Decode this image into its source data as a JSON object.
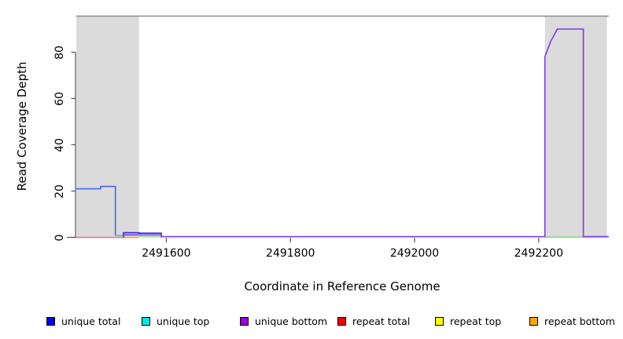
{
  "chart_data": {
    "type": "line",
    "title": "",
    "xlabel": "Coordinate in Reference Genome",
    "ylabel": "Read Coverage Depth",
    "xlim": [
      2491455,
      2492313
    ],
    "ylim": [
      0,
      95.6
    ],
    "x_ticks": [
      2491600,
      2491800,
      2492000,
      2492200
    ],
    "y_ticks": [
      0,
      20,
      40,
      60,
      80
    ],
    "grid": false,
    "legend_position": "bottom",
    "background_color": "#ffffff",
    "axis_color": "#555555",
    "top_border_color": "#8a8a8a",
    "shaded_region_color": "#dbdbdb",
    "shaded_regions": [
      [
        2491455,
        2491556
      ],
      [
        2492210,
        2492310
      ]
    ],
    "series": [
      {
        "name": "repeat total (zero line)",
        "color": "#f0708e",
        "segments": [
          [
            [
              2491455,
              0
            ],
            [
              2491531,
              0
            ]
          ]
        ]
      },
      {
        "name": "repeat bottom (zero line)",
        "color": "#ffa128",
        "segments": [
          [
            [
              2491531,
              0
            ],
            [
              2491556,
              0
            ]
          ]
        ]
      },
      {
        "name": "repeat top (zero line)",
        "color": "#8fd98f",
        "segments": [
          [
            [
              2491556,
              0.3
            ],
            [
              2491592,
              0.3
            ]
          ],
          [
            [
              2492210,
              0.15
            ],
            [
              2492272,
              0.15
            ]
          ]
        ]
      },
      {
        "name": "unique top",
        "color": "#2ec9e2",
        "segments": [
          [
            [
              2491518,
              0.8
            ],
            [
              2491531,
              0.8
            ]
          ]
        ]
      },
      {
        "name": "unique total (left block)",
        "color": "#4668e8",
        "segments": [
          [
            [
              2491455,
              21
            ],
            [
              2491494,
              21
            ],
            [
              2491494,
              22
            ],
            [
              2491518,
              22
            ],
            [
              2491518,
              0.8
            ]
          ]
        ]
      },
      {
        "name": "unique total (low box)",
        "color": "#2b2bd5",
        "segments": [
          [
            [
              2491531,
              0
            ],
            [
              2491531,
              2
            ],
            [
              2491556,
              2
            ],
            [
              2491556,
              1.8
            ],
            [
              2491592,
              1.8
            ],
            [
              2491592,
              0
            ]
          ]
        ]
      },
      {
        "name": "unique bottom",
        "color": "#7a3be8",
        "segments": [
          [
            [
              2491531,
              1.1
            ],
            [
              2491592,
              1.1
            ],
            [
              2491592,
              0.3
            ],
            [
              2492210,
              0.3
            ],
            [
              2492210,
              78
            ],
            [
              2492212,
              79.5
            ],
            [
              2492214,
              81
            ],
            [
              2492217,
              83
            ],
            [
              2492219,
              84.5
            ],
            [
              2492222,
              86
            ],
            [
              2492225,
              87.5
            ],
            [
              2492228,
              89
            ],
            [
              2492230,
              90
            ],
            [
              2492272,
              90
            ],
            [
              2492272,
              0.3
            ],
            [
              2492313,
              0.3
            ]
          ]
        ]
      }
    ],
    "legend": [
      {
        "label": "unique total",
        "color": "#0000ee"
      },
      {
        "label": "unique top",
        "color": "#00e6e6"
      },
      {
        "label": "unique bottom",
        "color": "#9b00d8"
      },
      {
        "label": "repeat total",
        "color": "#ee0000"
      },
      {
        "label": "repeat top",
        "color": "#ffff00"
      },
      {
        "label": "repeat bottom",
        "color": "#ffa500"
      }
    ]
  }
}
